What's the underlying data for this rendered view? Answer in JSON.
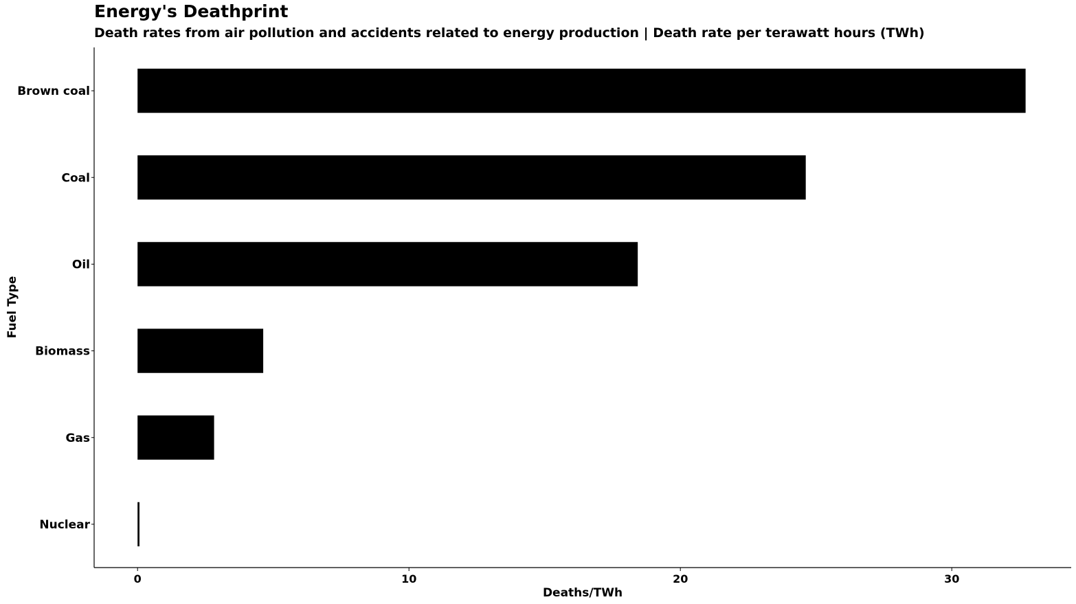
{
  "chart_data": {
    "type": "bar",
    "orientation": "horizontal",
    "title": "Energy's Deathprint",
    "subtitle": "Death rates from air pollution and accidents related to energy production | Death rate per terawatt hours (TWh)",
    "xlabel": "Deaths/TWh",
    "ylabel": "Fuel Type",
    "categories": [
      "Brown coal",
      "Coal",
      "Oil",
      "Biomass",
      "Gas",
      "Nuclear"
    ],
    "values": [
      32.72,
      24.62,
      18.43,
      4.63,
      2.82,
      0.07
    ],
    "xlim": [
      -1.6,
      34.4
    ],
    "xticks": [
      0,
      10,
      20,
      30
    ],
    "grid": false,
    "bar_color": "#000000"
  }
}
